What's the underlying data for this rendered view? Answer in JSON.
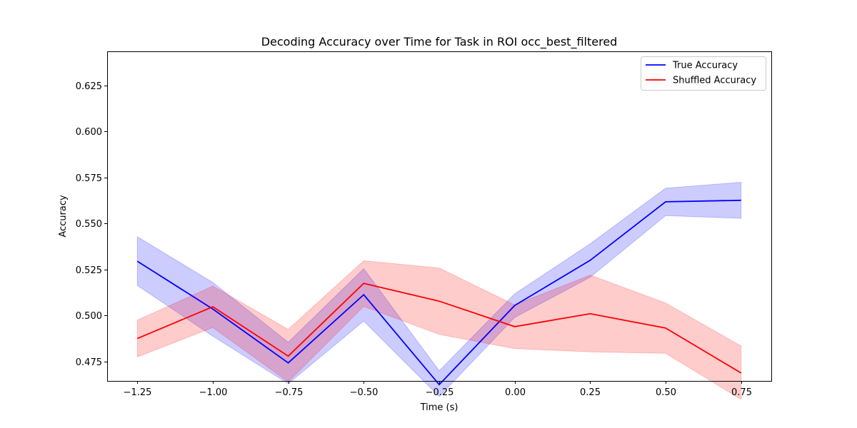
{
  "chart_data": {
    "type": "line",
    "title": "Decoding Accuracy over Time for Task in ROI occ_best_filtered",
    "xlabel": "Time (s)",
    "ylabel": "Accuracy",
    "x": [
      -1.25,
      -1.0,
      -0.75,
      -0.5,
      -0.25,
      0.0,
      0.25,
      0.5,
      0.75
    ],
    "xlim": [
      -1.35,
      0.85
    ],
    "ylim": [
      0.4645,
      0.6435
    ],
    "xticks": [
      -1.25,
      -1.0,
      -0.75,
      -0.5,
      -0.25,
      0.0,
      0.25,
      0.5,
      0.75
    ],
    "xtick_labels": [
      "−1.25",
      "−1.00",
      "−0.75",
      "−0.50",
      "−0.25",
      "0.00",
      "0.25",
      "0.50",
      "0.75"
    ],
    "yticks": [
      0.475,
      0.5,
      0.525,
      0.55,
      0.575,
      0.6,
      0.625
    ],
    "ytick_labels": [
      "0.475",
      "0.500",
      "0.525",
      "0.550",
      "0.575",
      "0.600",
      "0.625"
    ],
    "grid": false,
    "legend_position": "top-right",
    "series": [
      {
        "name": "True Accuracy",
        "color": "#0000ff",
        "values": [
          0.5295,
          0.5035,
          0.4743,
          0.5113,
          0.4625,
          0.5055,
          0.53,
          0.5618,
          0.5626
        ],
        "lower": [
          0.5163,
          0.4888,
          0.463,
          0.497,
          0.456,
          0.499,
          0.5208,
          0.5543,
          0.5528
        ],
        "upper": [
          0.5428,
          0.518,
          0.4855,
          0.5255,
          0.47,
          0.5118,
          0.539,
          0.5692,
          0.5724
        ]
      },
      {
        "name": "Shuffled Accuracy",
        "color": "#ff0000",
        "values": [
          0.4875,
          0.5048,
          0.478,
          0.5175,
          0.5078,
          0.494,
          0.501,
          0.4932,
          0.4688
        ],
        "lower": [
          0.4775,
          0.4935,
          0.464,
          0.505,
          0.4898,
          0.482,
          0.4803,
          0.4795,
          0.4545
        ],
        "upper": [
          0.4975,
          0.516,
          0.4925,
          0.5298,
          0.5258,
          0.5058,
          0.522,
          0.5068,
          0.4835
        ]
      }
    ]
  }
}
